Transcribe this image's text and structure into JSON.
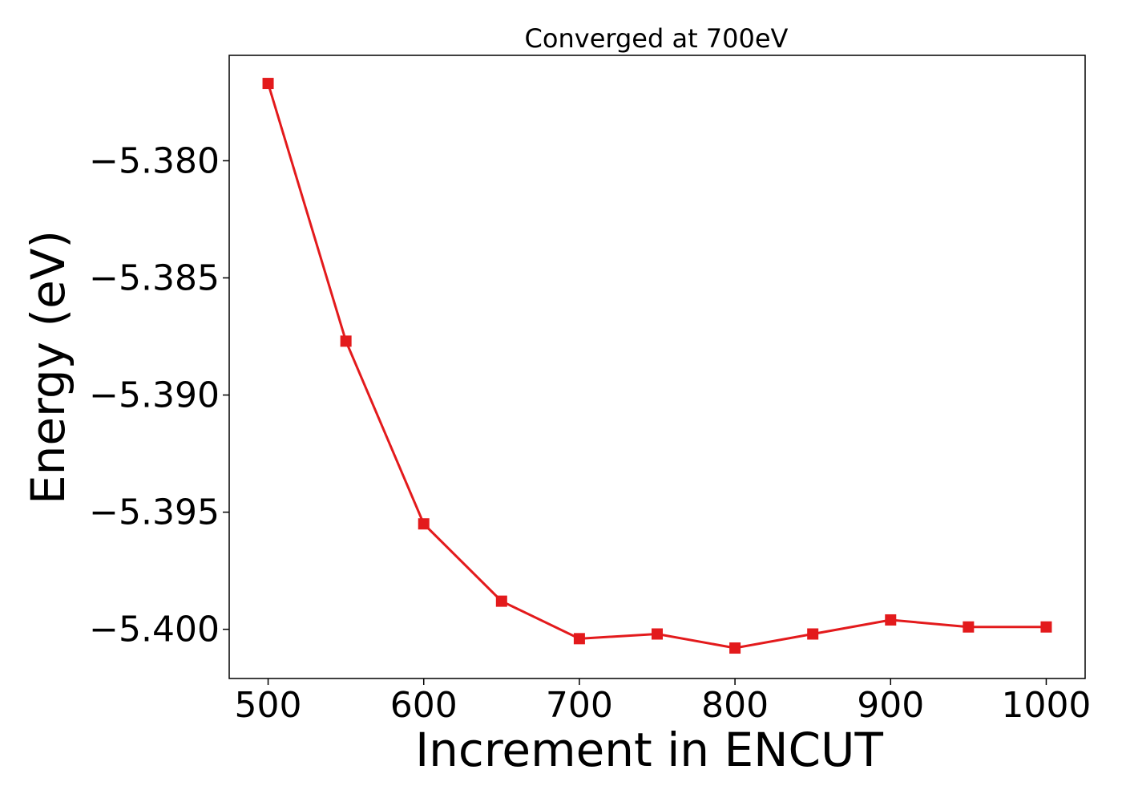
{
  "chart_data": {
    "type": "line",
    "title": "Converged at 700eV",
    "xlabel": "Increment in ENCUT",
    "ylabel": "Energy (eV)",
    "x": [
      500,
      550,
      600,
      650,
      700,
      750,
      800,
      850,
      900,
      950,
      1000
    ],
    "series": [
      {
        "values": [
          -5.3767,
          -5.3877,
          -5.3955,
          -5.3988,
          -5.4004,
          -5.4002,
          -5.4008,
          -5.4002,
          -5.3996,
          -5.3999,
          -5.3999
        ],
        "color": "#e31a1c",
        "marker": "square"
      }
    ],
    "xlim": [
      475,
      1025
    ],
    "ylim": [
      -5.4021,
      -5.3755
    ],
    "x_ticks": [
      500,
      600,
      700,
      800,
      900,
      1000
    ],
    "y_ticks": [
      -5.38,
      -5.385,
      -5.39,
      -5.395,
      -5.4
    ],
    "x_tick_labels": [
      "500",
      "600",
      "700",
      "800",
      "900",
      "1000"
    ],
    "y_tick_labels": [
      "−5.380",
      "−5.385",
      "−5.390",
      "−5.395",
      "−5.400"
    ],
    "grid": false,
    "legend": "none"
  }
}
